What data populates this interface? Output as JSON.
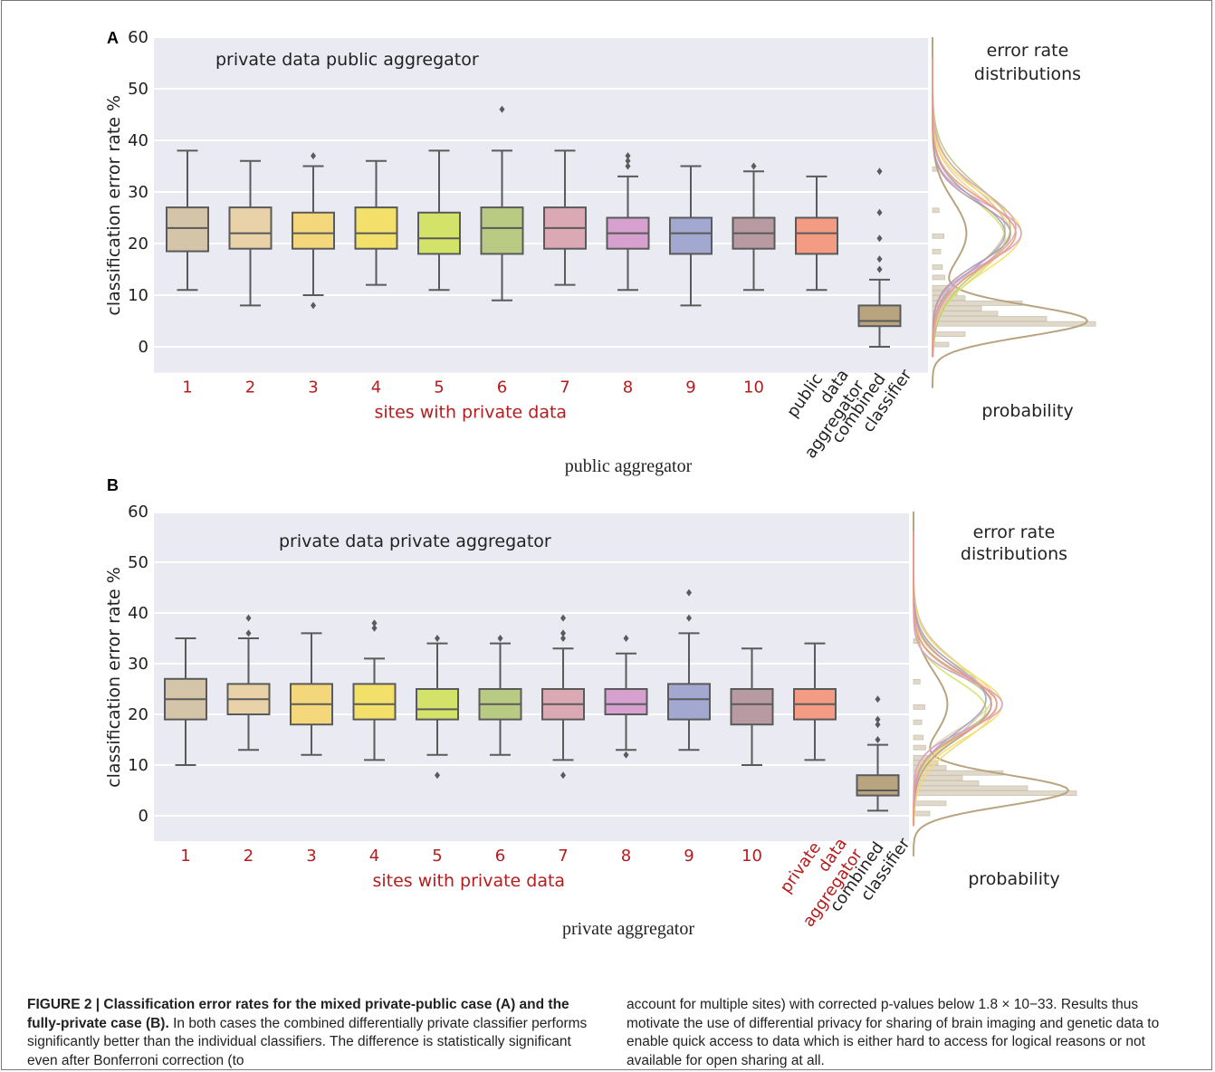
{
  "chart_data": [
    {
      "panel": "A",
      "type": "box",
      "title": "private data public aggregator",
      "ylabel": "classification error rate %",
      "xlabel": "sites with private data",
      "ylim": [
        -5,
        60
      ],
      "yticks": [
        0,
        10,
        20,
        30,
        40,
        50,
        60
      ],
      "grid": true,
      "subtitle": "public aggregator",
      "categories": [
        "1",
        "2",
        "3",
        "4",
        "5",
        "6",
        "7",
        "8",
        "9",
        "10",
        "public data aggregator",
        "combined classifier"
      ],
      "boxes": [
        {
          "label": "1",
          "color": "#d4c4a8",
          "min": 11,
          "q1": 18.5,
          "median": 23,
          "q3": 27,
          "max": 38,
          "outliers": []
        },
        {
          "label": "2",
          "color": "#e9d2a8",
          "min": 8,
          "q1": 19,
          "median": 22,
          "q3": 27,
          "max": 36,
          "outliers": []
        },
        {
          "label": "3",
          "color": "#f4d77a",
          "min": 10,
          "q1": 19,
          "median": 22,
          "q3": 26,
          "max": 35,
          "outliers": [
            37,
            8
          ]
        },
        {
          "label": "4",
          "color": "#f3e06a",
          "min": 12,
          "q1": 19,
          "median": 22,
          "q3": 27,
          "max": 36,
          "outliers": []
        },
        {
          "label": "5",
          "color": "#d3e36a",
          "min": 11,
          "q1": 18,
          "median": 21,
          "q3": 26,
          "max": 38,
          "outliers": []
        },
        {
          "label": "6",
          "color": "#b9cb82",
          "min": 9,
          "q1": 18,
          "median": 23,
          "q3": 27,
          "max": 38,
          "outliers": [
            46
          ]
        },
        {
          "label": "7",
          "color": "#dba9b4",
          "min": 12,
          "q1": 19,
          "median": 23,
          "q3": 27,
          "max": 38,
          "outliers": []
        },
        {
          "label": "8",
          "color": "#d6a0cf",
          "min": 11,
          "q1": 19,
          "median": 22,
          "q3": 25,
          "max": 33,
          "outliers": [
            35,
            36,
            37
          ]
        },
        {
          "label": "9",
          "color": "#a3a8d0",
          "min": 8,
          "q1": 18,
          "median": 22,
          "q3": 25,
          "max": 35,
          "outliers": []
        },
        {
          "label": "10",
          "color": "#b89aa2",
          "min": 11,
          "q1": 19,
          "median": 22,
          "q3": 25,
          "max": 34,
          "outliers": [
            35
          ]
        },
        {
          "label": "public data aggregator",
          "color": "#f39b83",
          "min": 11,
          "q1": 18,
          "median": 22,
          "q3": 25,
          "max": 33,
          "outliers": []
        },
        {
          "label": "combined classifier",
          "color": "#b8a47f",
          "min": 0,
          "q1": 4,
          "median": 5,
          "q3": 8,
          "max": 13,
          "outliers": [
            15,
            17,
            21,
            26,
            34
          ]
        }
      ],
      "side_panel": {
        "title_line1": "error rate",
        "title_line2": "distributions",
        "xlabel": "probability"
      }
    },
    {
      "panel": "B",
      "type": "box",
      "title": "private data private aggregator",
      "ylabel": "classification error rate %",
      "xlabel": "sites with private data",
      "ylim": [
        -5,
        60
      ],
      "yticks": [
        0,
        10,
        20,
        30,
        40,
        50,
        60
      ],
      "grid": true,
      "subtitle": "private aggregator",
      "categories": [
        "1",
        "2",
        "3",
        "4",
        "5",
        "6",
        "7",
        "8",
        "9",
        "10",
        "private data aggregator",
        "combined classifier"
      ],
      "boxes": [
        {
          "label": "1",
          "color": "#d4c4a8",
          "min": 10,
          "q1": 19,
          "median": 23,
          "q3": 27,
          "max": 35,
          "outliers": []
        },
        {
          "label": "2",
          "color": "#e9d2a8",
          "min": 13,
          "q1": 20,
          "median": 23,
          "q3": 26,
          "max": 35,
          "outliers": [
            36,
            39
          ]
        },
        {
          "label": "3",
          "color": "#f4d77a",
          "min": 12,
          "q1": 18,
          "median": 22,
          "q3": 26,
          "max": 36,
          "outliers": []
        },
        {
          "label": "4",
          "color": "#f3e06a",
          "min": 11,
          "q1": 19,
          "median": 22,
          "q3": 26,
          "max": 31,
          "outliers": [
            37,
            38
          ]
        },
        {
          "label": "5",
          "color": "#d3e36a",
          "min": 12,
          "q1": 19,
          "median": 21,
          "q3": 25,
          "max": 34,
          "outliers": [
            35,
            8
          ]
        },
        {
          "label": "6",
          "color": "#b9cb82",
          "min": 12,
          "q1": 19,
          "median": 22,
          "q3": 25,
          "max": 34,
          "outliers": [
            35
          ]
        },
        {
          "label": "7",
          "color": "#dba9b4",
          "min": 11,
          "q1": 19,
          "median": 22,
          "q3": 25,
          "max": 33,
          "outliers": [
            35,
            36,
            39,
            8
          ]
        },
        {
          "label": "8",
          "color": "#d6a0cf",
          "min": 13,
          "q1": 20,
          "median": 22,
          "q3": 25,
          "max": 32,
          "outliers": [
            35,
            12
          ]
        },
        {
          "label": "9",
          "color": "#a3a8d0",
          "min": 13,
          "q1": 19,
          "median": 23,
          "q3": 26,
          "max": 36,
          "outliers": [
            39,
            44
          ]
        },
        {
          "label": "10",
          "color": "#b89aa2",
          "min": 10,
          "q1": 18,
          "median": 22,
          "q3": 25,
          "max": 33,
          "outliers": []
        },
        {
          "label": "private data aggregator",
          "color": "#f39b83",
          "min": 11,
          "q1": 19,
          "median": 22,
          "q3": 25,
          "max": 34,
          "outliers": []
        },
        {
          "label": "combined classifier",
          "color": "#b8a47f",
          "min": 1,
          "q1": 4,
          "median": 5,
          "q3": 8,
          "max": 14,
          "outliers": [
            15,
            18,
            19,
            23
          ]
        }
      ],
      "side_panel": {
        "title_line1": "error rate",
        "title_line2": "distributions",
        "xlabel": "probability"
      }
    }
  ],
  "caption": {
    "bold": "FIGURE 2 | Classification error rates for the mixed private-public case (A) and the fully-private case (B).",
    "col1_rest": "In both cases the combined differentially private classifier performs significantly better than the individual classifiers. The difference is statistically significant even after Bonferroni correction (to",
    "col2": "account for multiple sites) with corrected p-values below 1.8 × 10−33. Results thus motivate the use of differential privacy for sharing of brain imaging and genetic data to enable quick access to data which is either hard to access for logical reasons or not available for open sharing at all."
  },
  "colors": {
    "plot_bg": "#eaeaf2",
    "grid": "#ffffff",
    "whisker": "#5a5a5a",
    "red_label": "#b71c1c",
    "hist": "#e0d8c8"
  }
}
